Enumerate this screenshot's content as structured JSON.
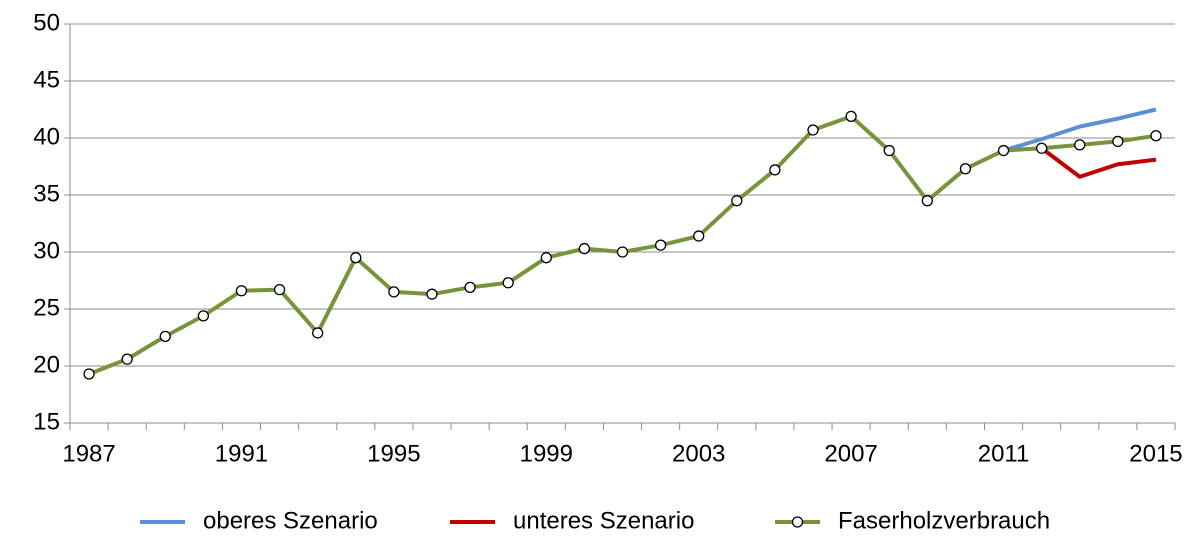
{
  "chart_data": {
    "type": "line",
    "categories": [
      1987,
      null,
      null,
      null,
      1991,
      null,
      null,
      null,
      1995,
      null,
      null,
      null,
      1999,
      null,
      null,
      null,
      2003,
      null,
      null,
      null,
      2007,
      null,
      null,
      null,
      2011,
      null,
      null,
      null,
      2015
    ],
    "series": [
      {
        "name": "oberes Szenario",
        "color": "#5b8fd6",
        "values": [
          null,
          null,
          null,
          null,
          null,
          null,
          null,
          null,
          null,
          null,
          null,
          null,
          null,
          null,
          null,
          null,
          null,
          null,
          null,
          null,
          null,
          null,
          null,
          null,
          38.9,
          39.9,
          41.0,
          41.7,
          42.5
        ]
      },
      {
        "name": "unteres Szenario",
        "color": "#c00000",
        "values": [
          null,
          null,
          null,
          null,
          null,
          null,
          null,
          null,
          null,
          null,
          null,
          null,
          null,
          null,
          null,
          null,
          null,
          null,
          null,
          null,
          null,
          null,
          null,
          null,
          null,
          39.1,
          36.6,
          37.7,
          38.1
        ]
      },
      {
        "name": "Faserholzverbrauch",
        "color": "#77933c",
        "values": [
          19.3,
          20.6,
          22.6,
          24.4,
          26.6,
          26.7,
          22.9,
          29.5,
          26.5,
          26.3,
          26.9,
          27.3,
          29.5,
          30.3,
          30.0,
          30.6,
          31.4,
          34.5,
          37.2,
          40.7,
          41.9,
          38.9,
          34.5,
          37.3,
          38.9,
          39.1,
          39.4,
          39.7,
          40.2
        ]
      }
    ],
    "ylim": [
      15,
      50
    ],
    "yticks": [
      15,
      20,
      25,
      30,
      35,
      40,
      45,
      50
    ],
    "grid": true,
    "legend": "bottom"
  }
}
